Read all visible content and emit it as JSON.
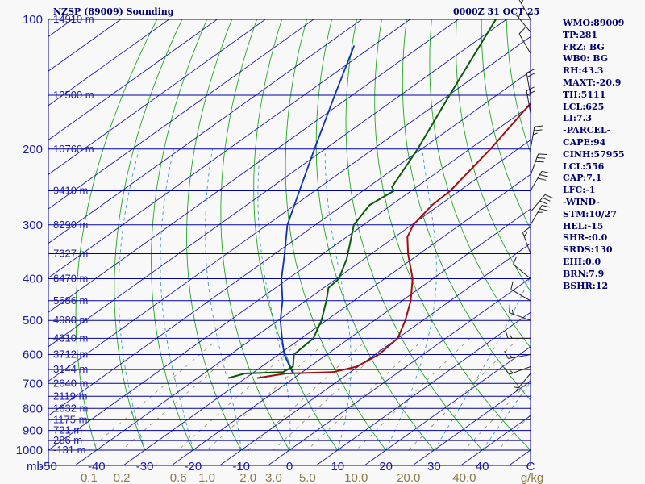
{
  "header": {
    "title_left": "NZSP (89009) Sounding",
    "title_right": "0000Z 31 OCT 25"
  },
  "stats": [
    "WMO:89009",
    "TP:281",
    "FRZ: BG",
    "WB0: BG",
    "RH:43.3",
    "MAXT:-20.9",
    "TH:5111",
    "LCL:625",
    "LI:7.3",
    "-PARCEL-",
    "CAPE:94",
    "CINH:57955",
    "LCL:556",
    "CAP:7.1",
    "LFC:-1",
    "-WIND-",
    "STM:10/27",
    "HEL:-15",
    "SHR-:0.0",
    "SRDS:130",
    "EHI:0.0",
    "BRN:7.9",
    "BSHR:12"
  ],
  "colors": {
    "isobar": "#0000a0",
    "isotherm": "#1c1ca8",
    "dry_adiabat": "#22a622",
    "moist_adiabat": "#3a9ad0",
    "mixing_ratio": "#9a8a5a",
    "temperature": "#a01010",
    "dewpoint": "#0a5a0a",
    "parcel": "#1030b0",
    "label": "#1c1ca8",
    "mixing_label": "#8a7a4a",
    "wind": "#202020"
  },
  "chart_data": {
    "type": "skew-t",
    "x_unit": "C",
    "mixing_ratio_unit": "g/kg",
    "y_axis_corner_label": "mb",
    "pressure_levels": [
      {
        "p": 100,
        "label": "100",
        "height": "14910 m"
      },
      {
        "p": 150,
        "label": "",
        "height": "12500 m"
      },
      {
        "p": 200,
        "label": "200",
        "height": "10760 m"
      },
      {
        "p": 250,
        "label": "",
        "height": "9410 m"
      },
      {
        "p": 300,
        "label": "300",
        "height": "8290 m"
      },
      {
        "p": 350,
        "label": "",
        "height": "7327 m"
      },
      {
        "p": 400,
        "label": "400",
        "height": "6470 m"
      },
      {
        "p": 450,
        "label": "",
        "height": "5686 m"
      },
      {
        "p": 500,
        "label": "500",
        "height": "4980 m"
      },
      {
        "p": 550,
        "label": "",
        "height": "4310 m"
      },
      {
        "p": 600,
        "label": "600",
        "height": "3712 m"
      },
      {
        "p": 650,
        "label": "",
        "height": "3144 m"
      },
      {
        "p": 700,
        "label": "700",
        "height": "2640 m"
      },
      {
        "p": 750,
        "label": "",
        "height": "2119 m"
      },
      {
        "p": 800,
        "label": "800",
        "height": "1632 m"
      },
      {
        "p": 850,
        "label": "",
        "height": "1175 m"
      },
      {
        "p": 900,
        "label": "900",
        "height": "721 m"
      },
      {
        "p": 950,
        "label": "",
        "height": "286 m"
      },
      {
        "p": 1000,
        "label": "1000",
        "height": "-131 m"
      }
    ],
    "temperature_ticks": [
      {
        "t": -50,
        "label": "-50"
      },
      {
        "t": -40,
        "label": "-40"
      },
      {
        "t": -30,
        "label": "-30"
      },
      {
        "t": -20,
        "label": "-20"
      },
      {
        "t": -10,
        "label": "-10"
      },
      {
        "t": 0,
        "label": "0"
      },
      {
        "t": 10,
        "label": "10"
      },
      {
        "t": 20,
        "label": "20"
      },
      {
        "t": 30,
        "label": "30"
      },
      {
        "t": 40,
        "label": "40"
      },
      {
        "t": 50,
        "label": "C"
      }
    ],
    "mixing_ratio_ticks": [
      {
        "w": 0.1,
        "label": "0.1"
      },
      {
        "w": 0.2,
        "label": "0.2"
      },
      {
        "w": 0.6,
        "label": "0.6"
      },
      {
        "w": 1.0,
        "label": "1.0"
      },
      {
        "w": 2.0,
        "label": "2.0"
      },
      {
        "w": 3.0,
        "label": "3.0"
      },
      {
        "w": 5.0,
        "label": "5.0"
      },
      {
        "w": 10.0,
        "label": "10.0"
      },
      {
        "w": 20.0,
        "label": "20.0"
      },
      {
        "w": 40.0,
        "label": "40.0"
      },
      {
        "w": 60.0,
        "label": "g/kg"
      }
    ],
    "temperature_profile": [
      {
        "p": 680,
        "t": -27.6
      },
      {
        "p": 664,
        "t": -23.0
      },
      {
        "p": 659,
        "t": -13.6
      },
      {
        "p": 640,
        "t": -10.3
      },
      {
        "p": 600,
        "t": -9.2
      },
      {
        "p": 550,
        "t": -10.0
      },
      {
        "p": 500,
        "t": -13.6
      },
      {
        "p": 450,
        "t": -18.2
      },
      {
        "p": 400,
        "t": -24.2
      },
      {
        "p": 350,
        "t": -32.4
      },
      {
        "p": 320,
        "t": -37.4
      },
      {
        "p": 300,
        "t": -39.7
      },
      {
        "p": 270,
        "t": -41.5
      },
      {
        "p": 250,
        "t": -41.9
      },
      {
        "p": 200,
        "t": -45.7
      },
      {
        "p": 150,
        "t": -51.5
      },
      {
        "p": 120,
        "t": -54.6
      },
      {
        "p": 107,
        "t": -56.1
      },
      {
        "p": 100,
        "t": -56.5
      }
    ],
    "dewpoint_profile": [
      {
        "p": 680,
        "t": -33.6
      },
      {
        "p": 664,
        "t": -31.5
      },
      {
        "p": 659,
        "t": -24.0
      },
      {
        "p": 640,
        "t": -23.5
      },
      {
        "p": 600,
        "t": -26.8
      },
      {
        "p": 550,
        "t": -27.5
      },
      {
        "p": 500,
        "t": -31.0
      },
      {
        "p": 450,
        "t": -35.7
      },
      {
        "p": 420,
        "t": -39.0
      },
      {
        "p": 400,
        "t": -39.5
      },
      {
        "p": 360,
        "t": -43.6
      },
      {
        "p": 330,
        "t": -47.6
      },
      {
        "p": 300,
        "t": -52.0
      },
      {
        "p": 270,
        "t": -54.5
      },
      {
        "p": 250,
        "t": -53.6
      },
      {
        "p": 245,
        "t": -55.1
      },
      {
        "p": 200,
        "t": -60.8
      },
      {
        "p": 150,
        "t": -69.8
      },
      {
        "p": 100,
        "t": -82.2
      }
    ],
    "parcel_profile": [
      {
        "p": 664,
        "t": -21.5
      },
      {
        "p": 600,
        "t": -28.8
      },
      {
        "p": 550,
        "t": -34.0
      },
      {
        "p": 500,
        "t": -39.5
      },
      {
        "p": 450,
        "t": -44.8
      },
      {
        "p": 400,
        "t": -51.4
      },
      {
        "p": 350,
        "t": -58.0
      },
      {
        "p": 300,
        "t": -65.8
      },
      {
        "p": 250,
        "t": -73.2
      },
      {
        "p": 200,
        "t": -82.2
      },
      {
        "p": 150,
        "t": -93.6
      },
      {
        "p": 115,
        "t": -104.0
      }
    ],
    "wind_barbs": [
      {
        "p": 100,
        "dir": 330,
        "spd_kt": 5
      },
      {
        "p": 107,
        "dir": 320,
        "spd_kt": 5
      },
      {
        "p": 120,
        "dir": 330,
        "spd_kt": 10
      },
      {
        "p": 150,
        "dir": 350,
        "spd_kt": 20
      },
      {
        "p": 165,
        "dir": 350,
        "spd_kt": 20
      },
      {
        "p": 200,
        "dir": 10,
        "spd_kt": 25
      },
      {
        "p": 230,
        "dir": 20,
        "spd_kt": 30
      },
      {
        "p": 250,
        "dir": 30,
        "spd_kt": 30
      },
      {
        "p": 280,
        "dir": 40,
        "spd_kt": 30
      },
      {
        "p": 300,
        "dir": 30,
        "spd_kt": 25
      },
      {
        "p": 350,
        "dir": 340,
        "spd_kt": 15
      },
      {
        "p": 400,
        "dir": 310,
        "spd_kt": 10
      },
      {
        "p": 450,
        "dir": 300,
        "spd_kt": 10
      },
      {
        "p": 500,
        "dir": 290,
        "spd_kt": 15
      },
      {
        "p": 550,
        "dir": 270,
        "spd_kt": 15
      },
      {
        "p": 600,
        "dir": 260,
        "spd_kt": 15
      },
      {
        "p": 640,
        "dir": 250,
        "spd_kt": 15
      },
      {
        "p": 664,
        "dir": 220,
        "spd_kt": 5
      }
    ]
  }
}
